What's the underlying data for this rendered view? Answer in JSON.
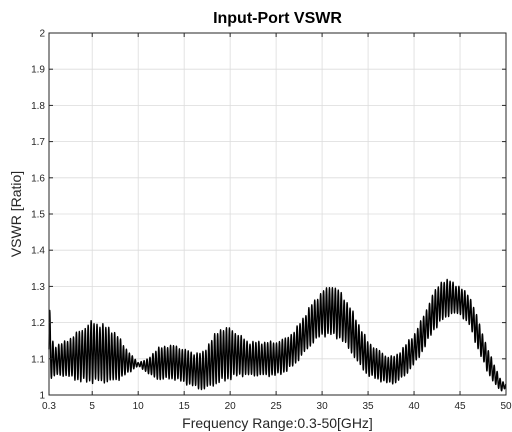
{
  "chart_data": {
    "type": "line",
    "title": "Input-Port VSWR",
    "xlabel": "Frequency Range:0.3-50[GHz]",
    "ylabel": "VSWR [Ratio]",
    "xlim": [
      0.3,
      50
    ],
    "ylim": [
      1,
      2
    ],
    "xticks": [
      0.3,
      5,
      10,
      15,
      20,
      25,
      30,
      35,
      40,
      45,
      50
    ],
    "xtick_labels": [
      "0.3",
      "5",
      "10",
      "15",
      "20",
      "25",
      "30",
      "35",
      "40",
      "45",
      "50"
    ],
    "yticks": [
      1,
      1.1,
      1.2,
      1.3,
      1.4,
      1.5,
      1.6,
      1.7,
      1.8,
      1.9,
      2
    ],
    "ytick_labels": [
      "1",
      "1.1",
      "1.2",
      "1.3",
      "1.4",
      "1.5",
      "1.6",
      "1.7",
      "1.8",
      "1.9",
      "2"
    ],
    "grid": true,
    "series": [
      {
        "color": "#000000",
        "envelope_x": [
          0.3,
          0.5,
          1,
          2,
          3,
          4,
          5,
          6,
          7,
          8,
          9,
          10,
          11,
          12,
          13,
          14,
          15,
          16,
          17,
          18,
          19,
          20,
          21,
          22,
          23,
          24,
          25,
          26,
          27,
          28,
          29,
          30,
          31,
          32,
          33,
          34,
          35,
          36,
          37,
          38,
          39,
          40,
          41,
          42,
          43,
          44,
          45,
          46,
          47,
          48,
          49,
          49.5,
          50
        ],
        "envelope_upper": [
          1.31,
          1.16,
          1.14,
          1.15,
          1.17,
          1.19,
          1.21,
          1.2,
          1.19,
          1.16,
          1.12,
          1.09,
          1.1,
          1.13,
          1.14,
          1.14,
          1.13,
          1.12,
          1.12,
          1.16,
          1.19,
          1.19,
          1.17,
          1.15,
          1.15,
          1.15,
          1.15,
          1.16,
          1.18,
          1.22,
          1.26,
          1.29,
          1.31,
          1.29,
          1.25,
          1.2,
          1.15,
          1.13,
          1.11,
          1.11,
          1.14,
          1.17,
          1.22,
          1.28,
          1.32,
          1.32,
          1.3,
          1.28,
          1.21,
          1.13,
          1.07,
          1.04,
          1.03
        ],
        "envelope_lower": [
          1.04,
          1.04,
          1.05,
          1.05,
          1.04,
          1.03,
          1.03,
          1.03,
          1.03,
          1.04,
          1.06,
          1.08,
          1.06,
          1.04,
          1.04,
          1.04,
          1.03,
          1.02,
          1.01,
          1.02,
          1.03,
          1.04,
          1.05,
          1.05,
          1.05,
          1.05,
          1.05,
          1.06,
          1.08,
          1.11,
          1.14,
          1.16,
          1.16,
          1.15,
          1.12,
          1.08,
          1.05,
          1.04,
          1.03,
          1.03,
          1.05,
          1.08,
          1.12,
          1.17,
          1.2,
          1.22,
          1.22,
          1.19,
          1.12,
          1.06,
          1.02,
          1.01,
          1.02
        ],
        "ripple_period_ghz": 0.32
      }
    ]
  }
}
